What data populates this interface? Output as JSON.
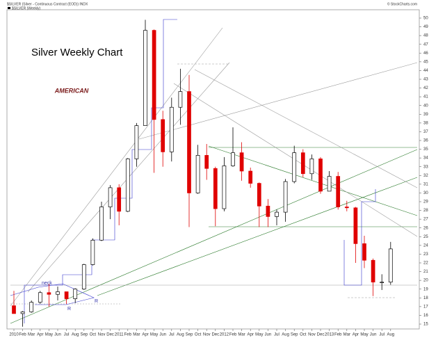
{
  "chart_data": {
    "type": "candlestick",
    "header": "$SILVER (Silver - Continuous Contract (EOD)) INDX",
    "source": "© StockCharts.com",
    "legend_label": "$SILVER (Weekly)",
    "title": "Silver Weekly Chart",
    "logo": "AMERICAN",
    "annotations": [
      "neck",
      "R",
      "R"
    ],
    "categories": [
      "2010",
      "Feb",
      "Mar",
      "Apr",
      "May",
      "Jun",
      "Jul",
      "Aug",
      "Sep",
      "Oct",
      "Nov",
      "Dec",
      "2011",
      "Feb",
      "Mar",
      "Apr",
      "May",
      "Jun",
      "Jul",
      "Aug",
      "Sep",
      "Oct",
      "Nov",
      "Dec",
      "2012",
      "Feb",
      "Mar",
      "Apr",
      "May",
      "Jun",
      "Jul",
      "Aug",
      "Sep",
      "Oct",
      "Nov",
      "Dec",
      "2013",
      "Feb",
      "Mar",
      "Apr",
      "May",
      "Jun",
      "Jul",
      "Aug"
    ],
    "open": [
      17.1,
      16.2,
      16.4,
      17.5,
      18.6,
      18.4,
      18.7,
      17.9,
      19.0,
      21.8,
      24.6,
      28.4,
      30.6,
      27.9,
      33.9,
      37.7,
      48.6,
      38.4,
      34.7,
      39.8,
      41.6,
      30.0,
      34.3,
      32.8,
      28.2,
      33.1,
      34.6,
      32.5,
      31.1,
      28.5,
      27.3,
      27.8,
      31.3,
      34.6,
      32.2,
      33.9,
      30.2,
      31.9,
      28.4,
      28.3,
      24.2,
      22.3,
      19.8,
      19.8
    ],
    "high": [
      18.8,
      16.5,
      17.7,
      18.8,
      19.6,
      19.3,
      18.7,
      19.1,
      21.9,
      24.8,
      29.0,
      30.9,
      31.0,
      34.0,
      38.0,
      49.8,
      48.7,
      39.4,
      40.9,
      44.2,
      43.5,
      35.5,
      35.6,
      33.0,
      34.1,
      37.5,
      35.8,
      32.9,
      31.2,
      29.3,
      28.1,
      31.6,
      35.4,
      35.0,
      34.4,
      34.1,
      32.5,
      32.4,
      29.1,
      28.4,
      25.1,
      22.5,
      20.7,
      24.4
    ],
    "low": [
      16.2,
      14.7,
      16.3,
      17.3,
      17.0,
      17.7,
      17.3,
      17.4,
      18.9,
      21.7,
      24.5,
      27.0,
      26.3,
      27.8,
      33.0,
      37.7,
      32.3,
      33.0,
      33.6,
      37.8,
      26.1,
      29.9,
      31.5,
      26.2,
      27.9,
      33.0,
      31.4,
      30.6,
      26.1,
      26.1,
      26.3,
      26.7,
      31.1,
      31.8,
      31.5,
      29.9,
      30.2,
      28.1,
      27.9,
      22.0,
      21.4,
      18.2,
      18.9,
      19.5
    ],
    "close": [
      16.2,
      16.4,
      17.5,
      18.6,
      18.4,
      18.7,
      17.9,
      19.0,
      21.8,
      24.6,
      28.4,
      30.6,
      27.9,
      33.9,
      37.7,
      48.6,
      38.4,
      34.7,
      39.8,
      41.6,
      30.0,
      34.3,
      32.8,
      28.2,
      33.1,
      34.6,
      32.5,
      31.1,
      28.5,
      27.3,
      27.8,
      31.3,
      34.6,
      32.2,
      33.9,
      30.2,
      31.9,
      28.4,
      28.3,
      24.2,
      22.3,
      19.8,
      19.8,
      23.6
    ],
    "up_color": "#000000",
    "down_color": "#e00000",
    "ylim": [
      15,
      50
    ],
    "yticks": [
      15,
      16,
      17,
      18,
      19,
      20,
      21,
      22,
      23,
      24,
      25,
      26,
      27,
      28,
      29,
      30,
      31,
      32,
      33,
      34,
      35,
      36,
      37,
      38,
      39,
      40,
      41,
      42,
      43,
      44,
      45,
      46,
      47,
      48,
      49,
      50
    ]
  }
}
